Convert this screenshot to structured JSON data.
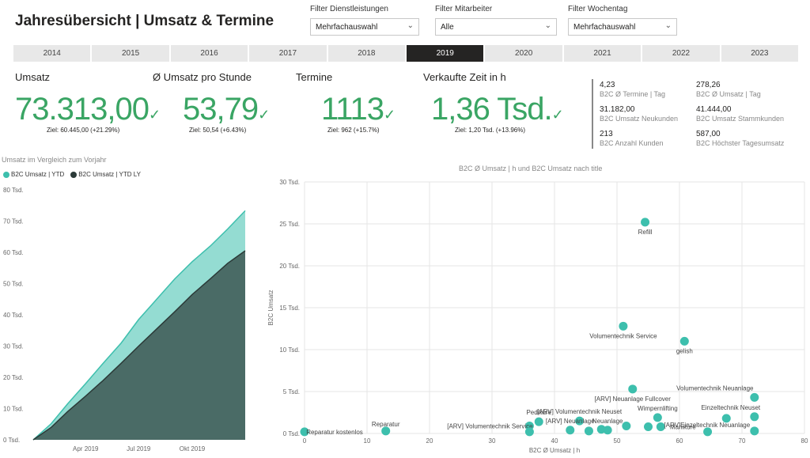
{
  "header": {
    "title": "Jahresübersicht | Umsatz & Termine"
  },
  "filters": [
    {
      "label": "Filter Dienstleistungen",
      "value": "Mehrfachauswahl"
    },
    {
      "label": "Filter Mitarbeiter",
      "value": "Alle"
    },
    {
      "label": "Filter Wochentag",
      "value": "Mehrfachauswahl"
    }
  ],
  "years": [
    "2014",
    "2015",
    "2016",
    "2017",
    "2018",
    "2019",
    "2020",
    "2021",
    "2022",
    "2023"
  ],
  "active_year": "2019",
  "kpis": [
    {
      "title": "Umsatz",
      "value": "73.313,00",
      "goal": "Ziel: 60.445,00 (+21.29%)"
    },
    {
      "title": "Ø Umsatz pro Stunde",
      "value": "53,79",
      "goal": "Ziel: 50,54 (+6.43%)"
    },
    {
      "title": "Termine",
      "value": "1113",
      "goal": "Ziel: 962 (+15.7%)"
    },
    {
      "title": "Verkaufte Zeit in h",
      "value": "1,36 Tsd.",
      "goal": "Ziel: 1,20 Tsd. (+13.96%)"
    }
  ],
  "stats": [
    {
      "value": "4,23",
      "label": "B2C Ø Termine | Tag"
    },
    {
      "value": "278,26",
      "label": "B2C Ø Umsatz | Tag"
    },
    {
      "value": "31.182,00",
      "label": "B2C Umsatz Neukunden"
    },
    {
      "value": "41.444,00",
      "label": "B2C Umsatz Stammkunden"
    },
    {
      "value": "213",
      "label": "B2C Anzahl Kunden"
    },
    {
      "value": "587,00",
      "label": "B2C Höchster Tagesumsatz"
    }
  ],
  "colors": {
    "accent": "#3aa564",
    "teal": "#3dbfad",
    "dark": "#2b3a38",
    "active_year": "#252423"
  },
  "chart_data": [
    {
      "type": "area",
      "title": "Umsatz im Vergleich zum Vorjahr",
      "series": [
        {
          "name": "B2C Umsatz | YTD",
          "color": "#3dbfad",
          "x": [
            "2019-01-01",
            "2019-02-01",
            "2019-03-01",
            "2019-04-01",
            "2019-05-01",
            "2019-06-01",
            "2019-07-01",
            "2019-08-01",
            "2019-09-01",
            "2019-10-01",
            "2019-11-01",
            "2019-12-01",
            "2019-12-31"
          ],
          "values": [
            0,
            5200,
            11500,
            18000,
            24500,
            31000,
            38500,
            45000,
            51500,
            57000,
            62000,
            67500,
            73313
          ]
        },
        {
          "name": "B2C Umsatz | YTD LY",
          "color": "#2b3a38",
          "x": [
            "2019-01-01",
            "2019-02-01",
            "2019-03-01",
            "2019-04-01",
            "2019-05-01",
            "2019-06-01",
            "2019-07-01",
            "2019-08-01",
            "2019-09-01",
            "2019-10-01",
            "2019-11-01",
            "2019-12-01",
            "2019-12-31"
          ],
          "values": [
            0,
            4000,
            9000,
            14000,
            19000,
            24500,
            30000,
            35500,
            41000,
            46500,
            51500,
            56500,
            60500
          ]
        }
      ],
      "x_ticks": [
        "Apr 2019",
        "Jul 2019",
        "Okt 2019"
      ],
      "x_tick_dates": [
        "2019-04-01",
        "2019-07-01",
        "2019-10-01"
      ],
      "y_ticks": [
        "0 Tsd.",
        "10 Tsd.",
        "20 Tsd.",
        "30 Tsd.",
        "40 Tsd.",
        "50 Tsd.",
        "60 Tsd.",
        "70 Tsd.",
        "80 Tsd."
      ],
      "ylim": [
        0,
        80000
      ],
      "legend": "top-left"
    },
    {
      "type": "scatter",
      "title": "B2C Ø Umsatz | h und B2C Umsatz nach title",
      "xlabel": "B2C Ø Umsatz | h",
      "ylabel": "B2C Umsatz",
      "xlim": [
        0,
        80
      ],
      "ylim": [
        0,
        30000
      ],
      "x_ticks": [
        "0",
        "10",
        "20",
        "30",
        "40",
        "50",
        "60",
        "70",
        "80"
      ],
      "y_ticks": [
        "0 Tsd.",
        "5 Tsd.",
        "10 Tsd.",
        "15 Tsd.",
        "20 Tsd.",
        "25 Tsd.",
        "30 Tsd."
      ],
      "points": [
        {
          "x": 54.5,
          "y": 25200,
          "label": "Refill"
        },
        {
          "x": 51,
          "y": 12800,
          "label": "Volumentechnik Service"
        },
        {
          "x": 60.8,
          "y": 11000,
          "label": "gelish"
        },
        {
          "x": 52.5,
          "y": 5300,
          "label": "[ARV] Neuanlage Fullcover"
        },
        {
          "x": 72,
          "y": 4300,
          "label": "Volumentechnik Neuanlage"
        },
        {
          "x": 56.5,
          "y": 1900,
          "label": "Wimpernlifting"
        },
        {
          "x": 72,
          "y": 2000,
          "label": "Einzeltechnik Neuset"
        },
        {
          "x": 67.5,
          "y": 1800,
          "label": ""
        },
        {
          "x": 37.5,
          "y": 1400,
          "label": "Pediküre"
        },
        {
          "x": 44,
          "y": 1500,
          "label": "[ARV] Volumentechnik Neuset"
        },
        {
          "x": 36,
          "y": 900,
          "label": "[ARV] Volumentechnik Service"
        },
        {
          "x": 51.5,
          "y": 900,
          "label": ""
        },
        {
          "x": 55,
          "y": 800,
          "label": ""
        },
        {
          "x": 57,
          "y": 800,
          "label": "Maniküre"
        },
        {
          "x": 47.5,
          "y": 500,
          "label": ""
        },
        {
          "x": 42.5,
          "y": 400,
          "label": "[ARV] Neuanlage"
        },
        {
          "x": 48.5,
          "y": 400,
          "label": "Neuanlage"
        },
        {
          "x": 45.5,
          "y": 300,
          "label": ""
        },
        {
          "x": 64.5,
          "y": 200,
          "label": ""
        },
        {
          "x": 72,
          "y": 300,
          "label": "[ARV]Einzeltechnik Neuanlage"
        },
        {
          "x": 13,
          "y": 300,
          "label": "Reparatur"
        },
        {
          "x": 36,
          "y": 200,
          "label": ""
        },
        {
          "x": 0,
          "y": 200,
          "label": "Reparatur kostenlos"
        }
      ]
    }
  ]
}
